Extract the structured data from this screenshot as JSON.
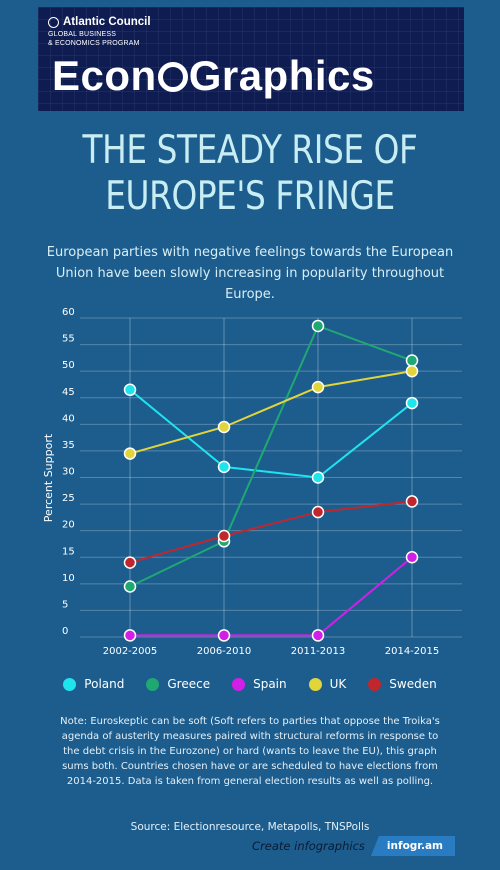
{
  "banner": {
    "org": "Atlantic Council",
    "program_line1": "GLOBAL BUSINESS",
    "program_line2": "& ECONOMICS PROGRAM",
    "brand_part1": "Econ",
    "brand_part2": "Graphics"
  },
  "title_line1": "THE STEADY RISE OF",
  "title_line2": "EUROPE'S FRINGE",
  "subtitle": "European parties with negative feelings towards the European Union have been slowly increasing in popularity throughout Europe.",
  "chart_data": {
    "type": "line",
    "ylabel": "Percent Support",
    "ylim": [
      0,
      60
    ],
    "yticks": [
      0,
      5,
      10,
      15,
      20,
      25,
      30,
      35,
      40,
      45,
      50,
      55,
      60
    ],
    "categories": [
      "2002-2005",
      "2006-2010",
      "2011-2013",
      "2014-2015"
    ],
    "grid": true,
    "legend_position": "bottom",
    "series": [
      {
        "name": "Poland",
        "color": "#1ee4ee",
        "values": [
          46.5,
          32,
          30,
          44
        ]
      },
      {
        "name": "Greece",
        "color": "#1fa872",
        "values": [
          9.5,
          18,
          58.5,
          52
        ]
      },
      {
        "name": "Spain",
        "color": "#d11fe6",
        "values": [
          0.3,
          0.3,
          0.3,
          15
        ]
      },
      {
        "name": "UK",
        "color": "#e2d53a",
        "values": [
          34.5,
          39.5,
          47,
          50
        ]
      },
      {
        "name": "Sweden",
        "color": "#c0272d",
        "values": [
          14,
          19,
          23.5,
          25.5
        ]
      }
    ]
  },
  "note": "Note: Euroskeptic can be soft (Soft refers to parties that oppose the Troika's agenda of austerity measures paired with structural reforms in response to the debt crisis in the Eurozone) or hard (wants to leave the EU), this graph sums both.  Countries chosen have or are scheduled to have elections from 2014-2015. Data is taken from general election results as well as polling.",
  "source": "Source: Electionresource, Metapolls, TNSPolls",
  "footer": {
    "cta": "Create infographics",
    "badge": "infogr.am"
  }
}
